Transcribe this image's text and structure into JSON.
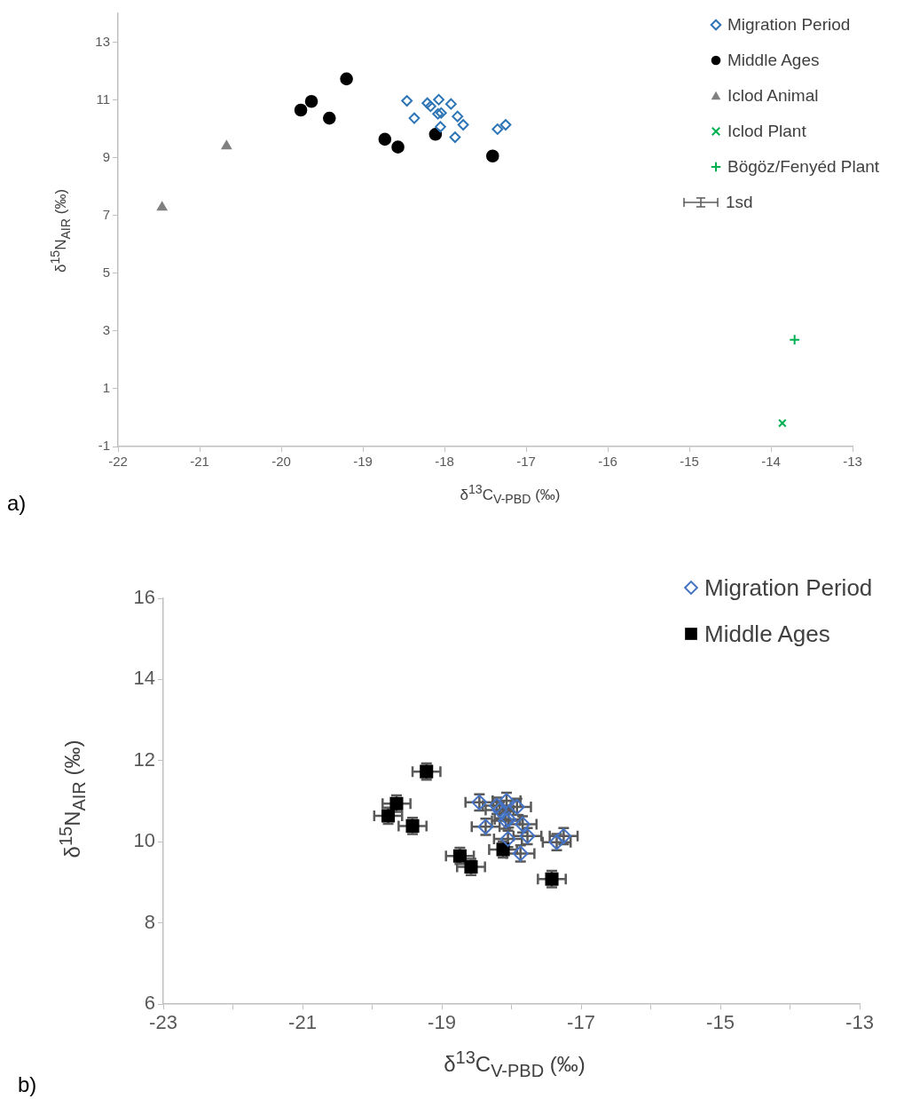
{
  "chart_data": [
    {
      "type": "scatter",
      "xlabel": "δ$^{13}$C$_{V-PBD}$ (‰)",
      "ylabel": "δ$^{15}$N$_{AIR}$ (‰)",
      "xlim": [
        -22,
        -13
      ],
      "xticks": [
        -22,
        -21,
        -20,
        -19,
        -18,
        -17,
        -16,
        -15,
        -14,
        -13
      ],
      "ylim": [
        -1,
        14
      ],
      "yticks": [
        -1,
        1,
        3,
        5,
        7,
        9,
        11,
        13
      ],
      "grid": false,
      "legend": "top right",
      "annotations": [
        "a)",
        "1sd"
      ],
      "series": [
        {
          "name": "Migration Period",
          "color": "#2e75b6",
          "marker": "diamond",
          "x": [
            -18.46,
            -18.21,
            -18.17,
            -18.07,
            -17.92,
            -18.37,
            -18.08,
            -18.04,
            -17.84,
            -17.77,
            -18.05,
            -17.87,
            -17.35,
            -17.25
          ],
          "values": [
            10.97,
            10.89,
            10.78,
            11.01,
            10.86,
            10.37,
            10.52,
            10.55,
            10.43,
            10.14,
            10.07,
            9.71,
            9.99,
            10.14
          ]
        },
        {
          "name": "Middle Ages",
          "color": "#000000",
          "marker": "circle",
          "x": [
            -19.2,
            -19.63,
            -19.76,
            -19.41,
            -18.73,
            -18.57,
            -18.11,
            -17.41
          ],
          "values": [
            11.73,
            10.95,
            10.65,
            10.37,
            9.64,
            9.37,
            9.81,
            9.06
          ]
        },
        {
          "name": "Iclod Animal",
          "color": "#808080",
          "marker": "triangle",
          "x": [
            -20.67,
            -21.46
          ],
          "values": [
            9.4,
            7.28
          ]
        },
        {
          "name": "Iclod Plant",
          "color": "#00b050",
          "marker": "cross",
          "x": [
            -13.86
          ],
          "values": [
            -0.19
          ]
        },
        {
          "name": "Bögöz/Fenyéd  Plant",
          "color": "#00b050",
          "marker": "plus",
          "x": [
            -13.71
          ],
          "values": [
            2.7
          ]
        }
      ]
    },
    {
      "type": "scatter",
      "xlabel": "δ$^{13}$C$_{V-PBD}$ (‰)",
      "ylabel": "δ$^{15}$N$_{AIR}$ (‰)",
      "xlim": [
        -23,
        -13
      ],
      "xticks": [
        -23,
        {
          "value": -22,
          "label": null
        },
        -21,
        {
          "value": -20,
          "label": null
        },
        -19,
        {
          "value": -18,
          "label": null
        },
        -17,
        {
          "value": -16,
          "label": null
        },
        -15,
        {
          "value": -14,
          "label": null
        },
        -13
      ],
      "ylim": [
        6,
        16
      ],
      "yticks": [
        6,
        8,
        10,
        12,
        14,
        16
      ],
      "grid": false,
      "legend": "top right",
      "annotations": [
        "b)"
      ],
      "series": [
        {
          "name": "Migration Period",
          "color": "#4472c4",
          "marker": "diamond",
          "x": [
            -18.46,
            -18.21,
            -18.17,
            -18.07,
            -17.92,
            -18.37,
            -18.08,
            -18.04,
            -17.84,
            -17.77,
            -18.05,
            -17.87,
            -17.35,
            -17.25
          ],
          "values": [
            10.97,
            10.89,
            10.78,
            11.01,
            10.86,
            10.37,
            10.52,
            10.55,
            10.43,
            10.14,
            10.07,
            9.71,
            9.99,
            10.14
          ],
          "errors": [
            0.2,
            0.2,
            0.2,
            0.2,
            0.2,
            0.2,
            0.2,
            0.2,
            0.2,
            0.2,
            0.2,
            0.2,
            0.2,
            0.2
          ],
          "xerrors": [
            0.2,
            0.2,
            0.2,
            0.2,
            0.2,
            0.2,
            0.2,
            0.2,
            0.2,
            0.2,
            0.2,
            0.2,
            0.2,
            0.2
          ]
        },
        {
          "name": "Middle Ages",
          "color": "#000000",
          "marker": "square",
          "x": [
            -19.22,
            -19.65,
            -19.77,
            -19.42,
            -18.74,
            -18.58,
            -18.12,
            -17.42
          ],
          "values": [
            11.73,
            10.94,
            10.64,
            10.39,
            9.65,
            9.38,
            9.81,
            9.08
          ],
          "errors": [
            0.2,
            0.2,
            0.2,
            0.2,
            0.2,
            0.2,
            0.2,
            0.2
          ],
          "xerrors": [
            0.2,
            0.2,
            0.2,
            0.2,
            0.2,
            0.2,
            0.2,
            0.2
          ]
        }
      ]
    }
  ]
}
